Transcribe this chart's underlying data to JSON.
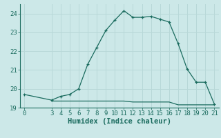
{
  "xlabel": "Humidex (Indice chaleur)",
  "background_color": "#cce8e8",
  "line_color": "#1a6b5e",
  "grid_color": "#b8d8d8",
  "x_main": [
    0,
    3,
    4,
    5,
    6,
    7,
    8,
    9,
    10,
    11,
    12,
    13,
    14,
    15,
    16,
    17,
    18,
    19,
    20,
    21
  ],
  "y_main": [
    19.7,
    19.4,
    19.6,
    19.7,
    20.0,
    21.3,
    22.2,
    23.1,
    23.65,
    24.15,
    23.8,
    23.8,
    23.85,
    23.7,
    23.55,
    22.4,
    21.05,
    20.35,
    20.35,
    19.2
  ],
  "x_flat": [
    3,
    4,
    5,
    6,
    7,
    8,
    9,
    10,
    11,
    12,
    13,
    14,
    15,
    16,
    17,
    18,
    19,
    20,
    21
  ],
  "y_flat": [
    19.35,
    19.35,
    19.35,
    19.35,
    19.35,
    19.35,
    19.35,
    19.35,
    19.35,
    19.3,
    19.3,
    19.3,
    19.3,
    19.3,
    19.15,
    19.15,
    19.15,
    19.15,
    19.15
  ],
  "xlim": [
    -0.5,
    21.5
  ],
  "ylim": [
    19.0,
    24.5
  ],
  "yticks": [
    19,
    20,
    21,
    22,
    23,
    24
  ],
  "xticks": [
    0,
    3,
    4,
    5,
    6,
    7,
    8,
    9,
    10,
    11,
    12,
    13,
    14,
    15,
    16,
    17,
    18,
    19,
    20,
    21
  ],
  "tick_fontsize": 6.5,
  "xlabel_fontsize": 7.5
}
